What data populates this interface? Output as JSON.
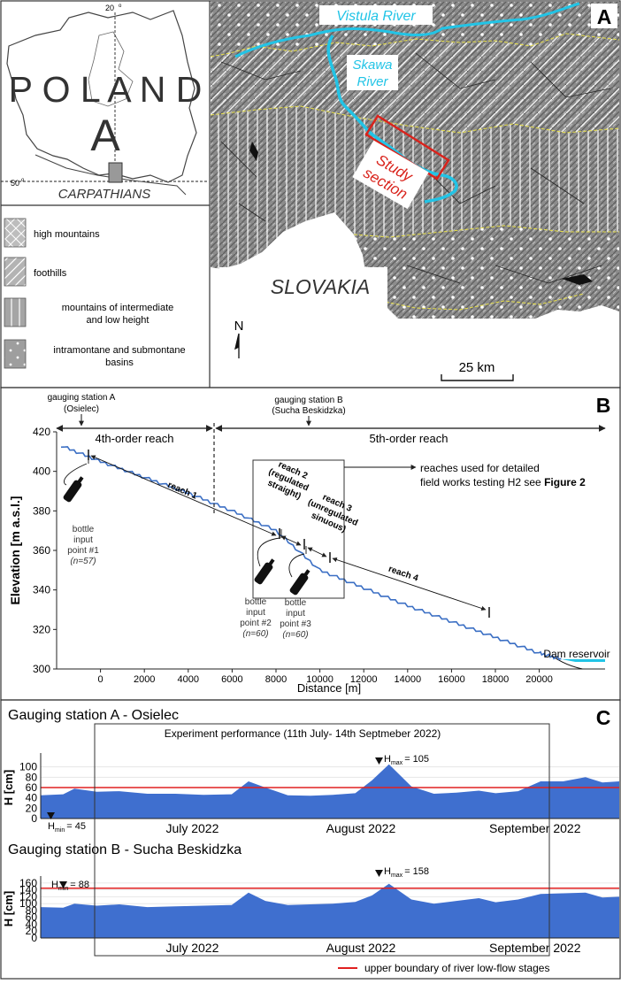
{
  "panel_a": {
    "letter": "A",
    "inset": {
      "country": "P O L A N D",
      "region_letter": "A",
      "longitude": "20",
      "latitude": "50",
      "mountains": "CARPATHIANS"
    },
    "map_labels": {
      "vistula": "Vistula River",
      "skawa_1": "Skawa",
      "skawa_2": "River",
      "study_1": "Study",
      "study_2": "section",
      "slovakia": "SLOVAKIA",
      "north": "N",
      "scale": "25 km"
    },
    "legend": [
      {
        "label_1": "high mountains",
        "label_2": ""
      },
      {
        "label_1": "foothills",
        "label_2": ""
      },
      {
        "label_1": "mountains of intermediate",
        "label_2": "and low height"
      },
      {
        "label_1": "intramontane and submontane",
        "label_2": "basins"
      }
    ],
    "colors": {
      "river": "#22c4e6",
      "study_box": "#d9231c",
      "boundary": "#e8e04a"
    }
  },
  "panel_b": {
    "letter": "B",
    "station_a": {
      "line_1": "gauging station A",
      "line_2": "(Osielec)"
    },
    "station_b": {
      "line_1": "gauging station B",
      "line_2": "(Sucha Beskidzka)"
    },
    "reach_4th": "4th-order reach",
    "reach_5th": "5th-order reach",
    "detail_note_1": "reaches used for detailed",
    "detail_note_2": "field works testing H2 see",
    "detail_note_fig": "Figure 2",
    "reach_1": "reach 1",
    "reach_2_lines": [
      "reach 2",
      "(regulated",
      "straight)"
    ],
    "reach_3_lines": [
      "reach 3",
      "(unregulated",
      "sinuous)"
    ],
    "reach_4": "reach 4",
    "bottle_1": [
      "bottle",
      "input",
      "point #1",
      "(n=57)"
    ],
    "bottle_2": [
      "bottle",
      "input",
      "point #2",
      "(n=60)"
    ],
    "bottle_3": [
      "bottle",
      "input",
      "point #3",
      "(n=60)"
    ],
    "dam": "Dam reservoir",
    "xlabel": "Distance [m]",
    "ylabel": "Elevation [m a.s.l.]"
  },
  "panel_c": {
    "letter": "C",
    "experiment": "Experiment performance (11th July- 14th Septmeber 2022)",
    "ylabel": "H [cm]",
    "legend": "upper boundary of river low-flow stages",
    "legend_color": "#e02020",
    "fill_color": "#3f6fcf",
    "months": [
      "July 2022",
      "August 2022",
      "September 2022"
    ],
    "station_a": {
      "title": "Gauging station A - Osielec",
      "hmax": "H",
      "hmax_sub": "max",
      "hmax_val": "= 105",
      "hmin": "H",
      "hmin_sub": "min",
      "hmin_val": "= 45"
    },
    "station_b": {
      "title": "Gauging station B - Sucha Beskidzka",
      "hmax": "H",
      "hmax_sub": "max",
      "hmax_val": "= 158",
      "hmin": "H",
      "hmin_sub": "min",
      "hmin_val": "= 88"
    }
  },
  "chart_data": [
    {
      "type": "line",
      "xlabel": "Distance [m]",
      "ylabel": "Elevation [m a.s.l.]",
      "xlim": [
        -2000,
        23000
      ],
      "ylim": [
        300,
        420
      ],
      "xticks": [
        0,
        2000,
        4000,
        6000,
        8000,
        10000,
        12000,
        14000,
        16000,
        18000,
        20000
      ],
      "yticks": [
        300,
        320,
        340,
        360,
        380,
        400,
        420
      ],
      "x": [
        -1800,
        0,
        2000,
        4000,
        6000,
        8000,
        10000,
        12000,
        14000,
        16000,
        18000,
        20000,
        21000
      ],
      "y": [
        413,
        405,
        397,
        389,
        380,
        370,
        350,
        341,
        332,
        324,
        316,
        308,
        305
      ]
    },
    {
      "type": "area",
      "title": "Gauging station A - Osielec",
      "ylabel": "H [cm]",
      "ylim": [
        0,
        120
      ],
      "yticks": [
        0,
        20,
        40,
        60,
        80,
        100
      ],
      "threshold": 60,
      "x_range": [
        "2022-06-19",
        "2022-09-30"
      ],
      "x": [
        "2022-06-19",
        "2022-06-23",
        "2022-06-25",
        "2022-06-29",
        "2022-07-03",
        "2022-07-08",
        "2022-07-13",
        "2022-07-18",
        "2022-07-23",
        "2022-07-26",
        "2022-07-29",
        "2022-08-02",
        "2022-08-06",
        "2022-08-10",
        "2022-08-14",
        "2022-08-17",
        "2022-08-20",
        "2022-08-24",
        "2022-08-28",
        "2022-09-01",
        "2022-09-05",
        "2022-09-08",
        "2022-09-12",
        "2022-09-16",
        "2022-09-20",
        "2022-09-24",
        "2022-09-27",
        "2022-09-30"
      ],
      "values": [
        45,
        47,
        58,
        52,
        53,
        48,
        48,
        46,
        47,
        72,
        60,
        45,
        44,
        46,
        49,
        74,
        105,
        62,
        48,
        50,
        54,
        49,
        53,
        72,
        72,
        80,
        70,
        72
      ]
    },
    {
      "type": "area",
      "title": "Gauging station B - Sucha Beskidzka",
      "ylabel": "H [cm]",
      "ylim": [
        0,
        170
      ],
      "yticks": [
        0,
        20,
        40,
        60,
        80,
        100,
        120,
        140,
        160
      ],
      "threshold": 145,
      "x_range": [
        "2022-06-19",
        "2022-09-30"
      ],
      "x": [
        "2022-06-19",
        "2022-06-23",
        "2022-06-25",
        "2022-06-29",
        "2022-07-03",
        "2022-07-08",
        "2022-07-13",
        "2022-07-18",
        "2022-07-23",
        "2022-07-26",
        "2022-07-29",
        "2022-08-02",
        "2022-08-06",
        "2022-08-10",
        "2022-08-14",
        "2022-08-17",
        "2022-08-20",
        "2022-08-24",
        "2022-08-28",
        "2022-09-01",
        "2022-09-05",
        "2022-09-08",
        "2022-09-12",
        "2022-09-16",
        "2022-09-20",
        "2022-09-24",
        "2022-09-27",
        "2022-09-30"
      ],
      "values": [
        90,
        88,
        100,
        94,
        98,
        90,
        92,
        94,
        96,
        132,
        108,
        96,
        98,
        100,
        105,
        124,
        158,
        112,
        100,
        108,
        116,
        104,
        112,
        128,
        130,
        132,
        118,
        120
      ]
    }
  ]
}
